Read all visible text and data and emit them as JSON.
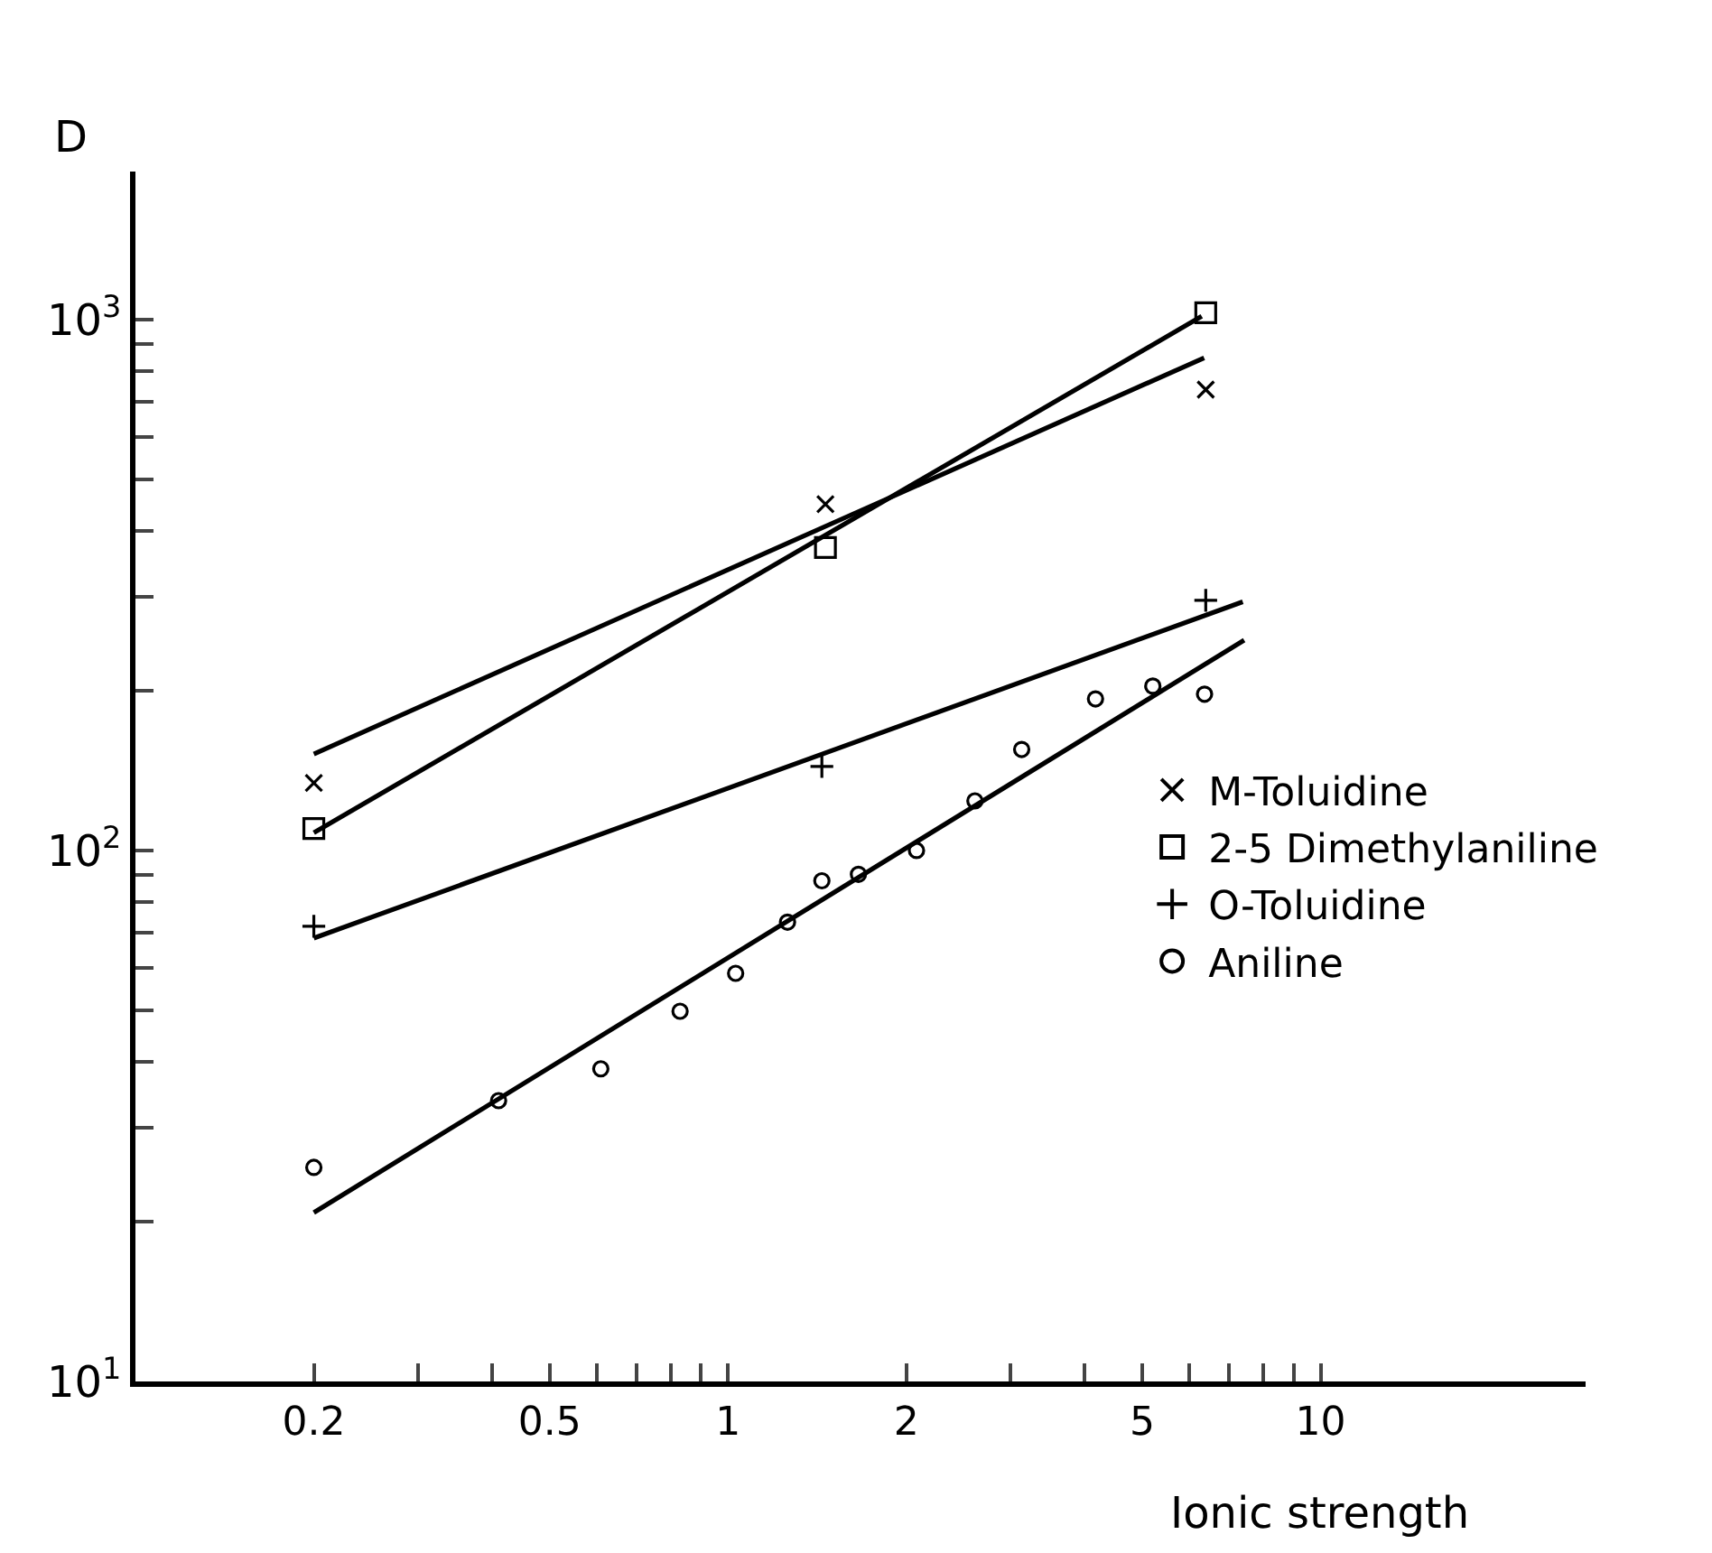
{
  "chart_data": {
    "type": "scatter",
    "xlabel": "Ionic strength",
    "ylabel": "D",
    "log": "xy",
    "grid": false,
    "legend": "right",
    "xlim": [
      0.1,
      28
    ],
    "ylim": [
      10,
      1900
    ],
    "xticks": [
      0.2,
      {
        "value": 0.3,
        "label": null
      },
      {
        "value": 0.4,
        "label": null
      },
      0.5,
      {
        "value": 0.6,
        "label": null
      },
      {
        "value": 0.7,
        "label": null
      },
      {
        "value": 0.8,
        "label": null
      },
      {
        "value": 0.9,
        "label": null
      },
      1,
      2,
      {
        "value": 3,
        "label": null
      },
      {
        "value": 4,
        "label": null
      },
      5,
      {
        "value": 6,
        "label": null
      },
      {
        "value": 7,
        "label": null
      },
      {
        "value": 8,
        "label": null
      },
      {
        "value": 9,
        "label": null
      },
      10
    ],
    "yticks": [
      {
        "value": 10,
        "label": "10$^{1}$"
      },
      {
        "value": 20,
        "label": null
      },
      {
        "value": 30,
        "label": null
      },
      {
        "value": 40,
        "label": null
      },
      {
        "value": 50,
        "label": null
      },
      {
        "value": 60,
        "label": null
      },
      {
        "value": 70,
        "label": null
      },
      {
        "value": 80,
        "label": null
      },
      {
        "value": 90,
        "label": null
      },
      {
        "value": 100,
        "label": "10$^{2}$"
      },
      {
        "value": 200,
        "label": null
      },
      {
        "value": 300,
        "label": null
      },
      {
        "value": 400,
        "label": null
      },
      {
        "value": 500,
        "label": null
      },
      {
        "value": 600,
        "label": null
      },
      {
        "value": 700,
        "label": null
      },
      {
        "value": 800,
        "label": null
      },
      {
        "value": 900,
        "label": null
      },
      {
        "value": 1000,
        "label": "10$^{3}$"
      }
    ],
    "series": [
      {
        "name": "M-Toluidine",
        "marker": "x",
        "color": "#000000",
        "x": [
          0.2,
          1.46,
          6.4
        ],
        "values": [
          134,
          449,
          738
        ]
      },
      {
        "name": "2-5 Dimethylaniline",
        "marker": "square",
        "color": "#000000",
        "x": [
          0.2,
          1.46,
          6.4
        ],
        "values": [
          110,
          372,
          1030
        ]
      },
      {
        "name": "O-Toluidine",
        "marker": "cross",
        "color": "#000000",
        "x": [
          0.2,
          1.44,
          6.4
        ],
        "values": [
          72,
          144,
          296
        ]
      },
      {
        "name": "Aniline",
        "marker": "circle",
        "color": "#000000",
        "x": [
          0.2,
          0.41,
          0.61,
          0.83,
          1.03,
          1.26,
          1.44,
          1.66,
          2.08,
          2.61,
          3.13,
          4.17,
          5.21,
          6.37
        ],
        "values": [
          25.3,
          33.8,
          38.8,
          49.8,
          58.7,
          73.3,
          87.7,
          90.2,
          100,
          124,
          155,
          193,
          204,
          197
        ]
      },
      {
        "type": "line",
        "marker": "none",
        "line_style": "solid",
        "color": "#000000",
        "x": [
          0.2,
          6.36
        ],
        "values": [
          152,
          847
        ]
      },
      {
        "type": "line",
        "marker": "none",
        "line_style": "solid",
        "color": "#000000",
        "x": [
          0.2,
          6.3
        ],
        "values": [
          108,
          1014
        ]
      },
      {
        "type": "line",
        "marker": "none",
        "line_style": "solid",
        "color": "#000000",
        "x": [
          0.2,
          7.39
        ],
        "values": [
          68.4,
          294
        ]
      },
      {
        "type": "line",
        "marker": "none",
        "line_style": "solid",
        "color": "#000000",
        "x": [
          0.2,
          7.43
        ],
        "values": [
          20.8,
          249
        ]
      }
    ]
  }
}
